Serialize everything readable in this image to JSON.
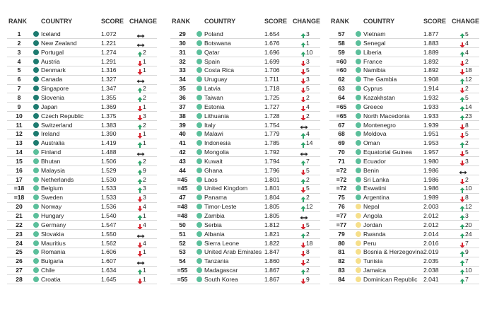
{
  "dot_colors": [
    "#1d7b70",
    "#5bbf9b",
    "#f6df8a"
  ],
  "columns": [
    {
      "header": {
        "rank": "RANK",
        "country": "COUNTRY",
        "score": "SCORE",
        "change": "CHANGE"
      },
      "rows": [
        {
          "rank": "1",
          "country": "Iceland",
          "score": "1.072",
          "trend": "same",
          "level": 0
        },
        {
          "rank": "2",
          "country": "New Zealand",
          "score": "1.221",
          "trend": "same",
          "level": 0
        },
        {
          "rank": "3",
          "country": "Portugal",
          "score": "1.274",
          "trend": "up",
          "change": "2",
          "level": 0
        },
        {
          "rank": "4",
          "country": "Austria",
          "score": "1.291",
          "trend": "down",
          "change": "1",
          "level": 0
        },
        {
          "rank": "5",
          "country": "Denmark",
          "score": "1.316",
          "trend": "down",
          "change": "1",
          "level": 0
        },
        {
          "rank": "6",
          "country": "Canada",
          "score": "1.327",
          "trend": "same",
          "level": 0
        },
        {
          "rank": "7",
          "country": "Singapore",
          "score": "1.347",
          "trend": "up",
          "change": "2",
          "level": 0
        },
        {
          "rank": "8",
          "country": "Slovenia",
          "score": "1.355",
          "trend": "up",
          "change": "2",
          "level": 0
        },
        {
          "rank": "9",
          "country": "Japan",
          "score": "1.369",
          "trend": "down",
          "change": "1",
          "level": 0
        },
        {
          "rank": "10",
          "country": "Czech Republic",
          "score": "1.375",
          "trend": "down",
          "change": "3",
          "level": 0
        },
        {
          "rank": "11",
          "country": "Switzerland",
          "score": "1.383",
          "trend": "up",
          "change": "2",
          "level": 0
        },
        {
          "rank": "12",
          "country": "Ireland",
          "score": "1.390",
          "trend": "down",
          "change": "1",
          "level": 0
        },
        {
          "rank": "13",
          "country": "Australia",
          "score": "1.419",
          "trend": "up",
          "change": "1",
          "level": 0
        },
        {
          "rank": "14",
          "country": "Finland",
          "score": "1.488",
          "trend": "same",
          "level": 1
        },
        {
          "rank": "15",
          "country": "Bhutan",
          "score": "1.506",
          "trend": "up",
          "change": "2",
          "level": 1
        },
        {
          "rank": "16",
          "country": "Malaysia",
          "score": "1.529",
          "trend": "up",
          "change": "9",
          "level": 1
        },
        {
          "rank": "17",
          "country": "Netherlands",
          "score": "1.530",
          "trend": "up",
          "change": "2",
          "level": 1
        },
        {
          "rank": "=18",
          "country": "Belgium",
          "score": "1.533",
          "trend": "up",
          "change": "3",
          "level": 1
        },
        {
          "rank": "=18",
          "country": "Sweden",
          "score": "1.533",
          "trend": "down",
          "change": "3",
          "level": 1
        },
        {
          "rank": "20",
          "country": "Norway",
          "score": "1.536",
          "trend": "down",
          "change": "4",
          "level": 1
        },
        {
          "rank": "21",
          "country": "Hungary",
          "score": "1.540",
          "trend": "up",
          "change": "1",
          "level": 1
        },
        {
          "rank": "22",
          "country": "Germany",
          "score": "1.547",
          "trend": "down",
          "change": "4",
          "level": 1
        },
        {
          "rank": "23",
          "country": "Slovakia",
          "score": "1.550",
          "trend": "same",
          "level": 1
        },
        {
          "rank": "24",
          "country": "Mauritius",
          "score": "1.562",
          "trend": "down",
          "change": "4",
          "level": 1
        },
        {
          "rank": "25",
          "country": "Romania",
          "score": "1.606",
          "trend": "down",
          "change": "1",
          "level": 1
        },
        {
          "rank": "26",
          "country": "Bulgaria",
          "score": "1.607",
          "trend": "same",
          "level": 1
        },
        {
          "rank": "27",
          "country": "Chile",
          "score": "1.634",
          "trend": "up",
          "change": "1",
          "level": 1
        },
        {
          "rank": "28",
          "country": "Croatia",
          "score": "1.645",
          "trend": "down",
          "change": "1",
          "level": 1
        }
      ]
    },
    {
      "header": {
        "rank": "RANK",
        "country": "COUNTRY",
        "score": "SCORE",
        "change": "CHANGE"
      },
      "rows": [
        {
          "rank": "29",
          "country": "Poland",
          "score": "1.654",
          "trend": "up",
          "change": "3",
          "level": 1
        },
        {
          "rank": "30",
          "country": "Botswana",
          "score": "1.676",
          "trend": "up",
          "change": "1",
          "level": 1
        },
        {
          "rank": "31",
          "country": "Qatar",
          "score": "1.696",
          "trend": "up",
          "change": "10",
          "level": 1
        },
        {
          "rank": "32",
          "country": "Spain",
          "score": "1.699",
          "trend": "down",
          "change": "3",
          "level": 1
        },
        {
          "rank": "33",
          "country": "Costa Rica",
          "score": "1.706",
          "trend": "down",
          "change": "5",
          "level": 1
        },
        {
          "rank": "34",
          "country": "Uruguay",
          "score": "1.711",
          "trend": "down",
          "change": "3",
          "level": 1
        },
        {
          "rank": "35",
          "country": "Latvia",
          "score": "1.718",
          "trend": "down",
          "change": "5",
          "level": 1
        },
        {
          "rank": "36",
          "country": "Taiwan",
          "score": "1.725",
          "trend": "down",
          "change": "2",
          "level": 1
        },
        {
          "rank": "37",
          "country": "Estonia",
          "score": "1.727",
          "trend": "down",
          "change": "4",
          "level": 1
        },
        {
          "rank": "38",
          "country": "Lithuania",
          "score": "1.728",
          "trend": "down",
          "change": "2",
          "level": 1
        },
        {
          "rank": "39",
          "country": "Italy",
          "score": "1.754",
          "trend": "same",
          "level": 1
        },
        {
          "rank": "40",
          "country": "Malawi",
          "score": "1.779",
          "trend": "up",
          "change": "4",
          "level": 1
        },
        {
          "rank": "41",
          "country": "Indonesia",
          "score": "1.785",
          "trend": "up",
          "change": "14",
          "level": 1
        },
        {
          "rank": "42",
          "country": "Mongolia",
          "score": "1.792",
          "trend": "same",
          "level": 1
        },
        {
          "rank": "43",
          "country": "Kuwait",
          "score": "1.794",
          "trend": "up",
          "change": "7",
          "level": 1
        },
        {
          "rank": "44",
          "country": "Ghana",
          "score": "1.796",
          "trend": "down",
          "change": "5",
          "level": 1
        },
        {
          "rank": "=45",
          "country": "Laos",
          "score": "1.801",
          "trend": "up",
          "change": "2",
          "level": 1
        },
        {
          "rank": "=45",
          "country": "United Kingdom",
          "score": "1.801",
          "trend": "down",
          "change": "5",
          "level": 1
        },
        {
          "rank": "47",
          "country": "Panama",
          "score": "1.804",
          "trend": "up",
          "change": "2",
          "level": 1
        },
        {
          "rank": "=48",
          "country": "Timor-Leste",
          "score": "1.805",
          "trend": "up",
          "change": "12",
          "level": 1
        },
        {
          "rank": "=48",
          "country": "Zambia",
          "score": "1.805",
          "trend": "same",
          "level": 1
        },
        {
          "rank": "50",
          "country": "Serbia",
          "score": "1.812",
          "trend": "down",
          "change": "5",
          "level": 1
        },
        {
          "rank": "51",
          "country": "Albania",
          "score": "1.821",
          "trend": "up",
          "change": "2",
          "level": 1
        },
        {
          "rank": "52",
          "country": "Sierra Leone",
          "score": "1.822",
          "trend": "down",
          "change": "18",
          "level": 1
        },
        {
          "rank": "53",
          "country": "United Arab Emirates",
          "score": "1.847",
          "trend": "down",
          "change": "8",
          "level": 1
        },
        {
          "rank": "54",
          "country": "Tanzania",
          "score": "1.860",
          "trend": "down",
          "change": "2",
          "level": 1
        },
        {
          "rank": "=55",
          "country": "Madagascar",
          "score": "1.867",
          "trend": "up",
          "change": "2",
          "level": 1
        },
        {
          "rank": "=55",
          "country": "South Korea",
          "score": "1.867",
          "trend": "down",
          "change": "9",
          "level": 1
        }
      ]
    },
    {
      "header": {
        "rank": "RANK",
        "country": "COUNTRY",
        "score": "SCORE",
        "change": "CHANGE"
      },
      "rows": [
        {
          "rank": "57",
          "country": "Vietnam",
          "score": "1.877",
          "trend": "up",
          "change": "5",
          "level": 1
        },
        {
          "rank": "58",
          "country": "Senegal",
          "score": "1.883",
          "trend": "down",
          "change": "4",
          "level": 1
        },
        {
          "rank": "59",
          "country": "Liberia",
          "score": "1.889",
          "trend": "up",
          "change": "4",
          "level": 1
        },
        {
          "rank": "=60",
          "country": "France",
          "score": "1.892",
          "trend": "down",
          "change": "2",
          "level": 1
        },
        {
          "rank": "=60",
          "country": "Namibia",
          "score": "1.892",
          "trend": "down",
          "change": "18",
          "level": 1
        },
        {
          "rank": "62",
          "country": "The Gambia",
          "score": "1.908",
          "trend": "up",
          "change": "12",
          "level": 1
        },
        {
          "rank": "63",
          "country": "Cyprus",
          "score": "1.914",
          "trend": "down",
          "change": "2",
          "level": 1
        },
        {
          "rank": "64",
          "country": "Kazakhstan",
          "score": "1.932",
          "trend": "up",
          "change": "5",
          "level": 1
        },
        {
          "rank": "=65",
          "country": "Greece",
          "score": "1.933",
          "trend": "up",
          "change": "14",
          "level": 1
        },
        {
          "rank": "=65",
          "country": "North Macedonia",
          "score": "1.933",
          "trend": "up",
          "change": "23",
          "level": 1
        },
        {
          "rank": "67",
          "country": "Montenegro",
          "score": "1.939",
          "trend": "down",
          "change": "8",
          "level": 1
        },
        {
          "rank": "68",
          "country": "Moldova",
          "score": "1.951",
          "trend": "down",
          "change": "5",
          "level": 1
        },
        {
          "rank": "69",
          "country": "Oman",
          "score": "1.953",
          "trend": "up",
          "change": "2",
          "level": 1
        },
        {
          "rank": "70",
          "country": "Equatorial Guinea",
          "score": "1.957",
          "trend": "down",
          "change": "5",
          "level": 1
        },
        {
          "rank": "71",
          "country": "Ecuador",
          "score": "1.980",
          "trend": "down",
          "change": "3",
          "level": 1
        },
        {
          "rank": "=72",
          "country": "Benin",
          "score": "1.986",
          "trend": "same",
          "level": 1
        },
        {
          "rank": "=72",
          "country": "Sri Lanka",
          "score": "1.986",
          "trend": "down",
          "change": "2",
          "level": 1
        },
        {
          "rank": "=72",
          "country": "Eswatini",
          "score": "1.986",
          "trend": "up",
          "change": "10",
          "level": 1
        },
        {
          "rank": "75",
          "country": "Argentina",
          "score": "1.989",
          "trend": "down",
          "change": "8",
          "level": 1
        },
        {
          "rank": "76",
          "country": "Nepal",
          "score": "2.003",
          "trend": "up",
          "change": "12",
          "level": 2
        },
        {
          "rank": "=77",
          "country": "Angola",
          "score": "2.012",
          "trend": "up",
          "change": "3",
          "level": 2
        },
        {
          "rank": "=77",
          "country": "Jordan",
          "score": "2.012",
          "trend": "up",
          "change": "20",
          "level": 2
        },
        {
          "rank": "79",
          "country": "Rwanda",
          "score": "2.014",
          "trend": "up",
          "change": "24",
          "level": 2
        },
        {
          "rank": "80",
          "country": "Peru",
          "score": "2.016",
          "trend": "down",
          "change": "7",
          "level": 2
        },
        {
          "rank": "81",
          "country": "Bosnia & Herzegovina",
          "score": "2.019",
          "trend": "up",
          "change": "9",
          "level": 2
        },
        {
          "rank": "82",
          "country": "Tunisia",
          "score": "2.035",
          "trend": "up",
          "change": "7",
          "level": 2
        },
        {
          "rank": "83",
          "country": "Jamaica",
          "score": "2.038",
          "trend": "up",
          "change": "10",
          "level": 2
        },
        {
          "rank": "84",
          "country": "Dominican Republic",
          "score": "2.041",
          "trend": "up",
          "change": "7",
          "level": 2
        }
      ]
    }
  ]
}
